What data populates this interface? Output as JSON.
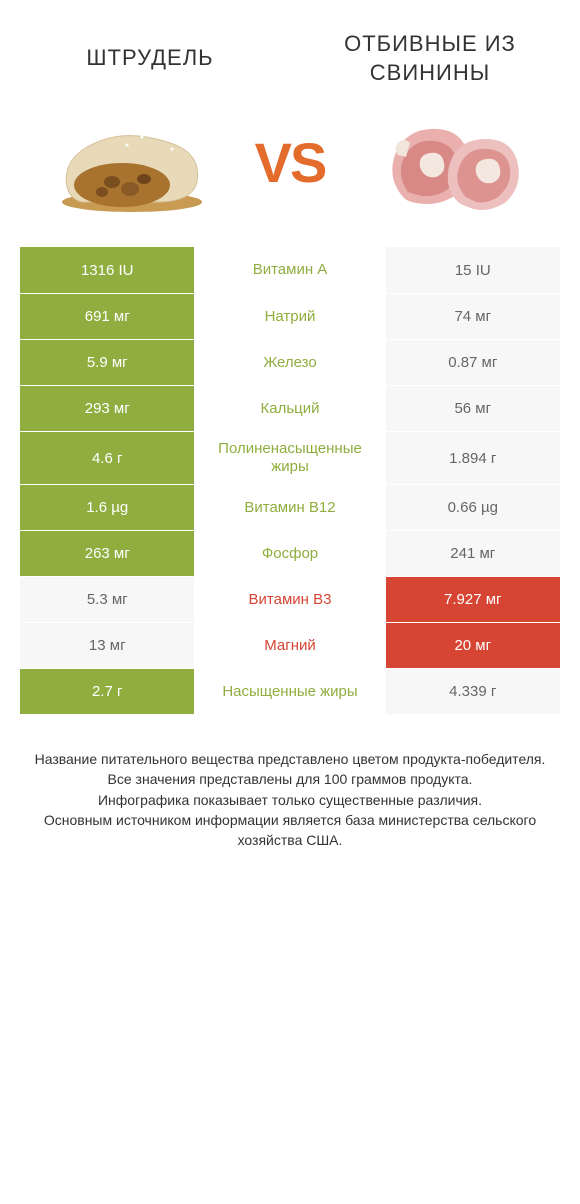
{
  "header": {
    "left_title": "ШТРУДЕЛЬ",
    "right_title": "ОТБИВНЫЕ ИЗ СВИНИНЫ",
    "vs_text": "VS"
  },
  "colors": {
    "left_win_bg": "#8fae3f",
    "left_win_text": "#ffffff",
    "right_win_bg": "#d64534",
    "right_win_text": "#ffffff",
    "lose_bg": "#f7f7f7",
    "lose_text": "#666666",
    "center_bg": "#ffffff"
  },
  "rows": [
    {
      "label": "Витамин A",
      "left": "1316 IU",
      "right": "15 IU",
      "winner": "left"
    },
    {
      "label": "Натрий",
      "left": "691 мг",
      "right": "74 мг",
      "winner": "left"
    },
    {
      "label": "Железо",
      "left": "5.9 мг",
      "right": "0.87 мг",
      "winner": "left"
    },
    {
      "label": "Кальций",
      "left": "293 мг",
      "right": "56 мг",
      "winner": "left"
    },
    {
      "label": "Полиненасыщенные жиры",
      "left": "4.6 г",
      "right": "1.894 г",
      "winner": "left"
    },
    {
      "label": "Витамин B12",
      "left": "1.6 µg",
      "right": "0.66 µg",
      "winner": "left"
    },
    {
      "label": "Фосфор",
      "left": "263 мг",
      "right": "241 мг",
      "winner": "left"
    },
    {
      "label": "Витамин B3",
      "left": "5.3 мг",
      "right": "7.927 мг",
      "winner": "right"
    },
    {
      "label": "Магний",
      "left": "13 мг",
      "right": "20 мг",
      "winner": "right"
    },
    {
      "label": "Насыщенные жиры",
      "left": "2.7 г",
      "right": "4.339 г",
      "winner": "left"
    }
  ],
  "footer": {
    "line1": "Название питательного вещества представлено цветом продукта-победителя.",
    "line2": "Все значения представлены для 100 граммов продукта.",
    "line3": "Инфографика показывает только существенные различия.",
    "line4": "Основным источником информации является база министерства сельского хозяйства США."
  }
}
